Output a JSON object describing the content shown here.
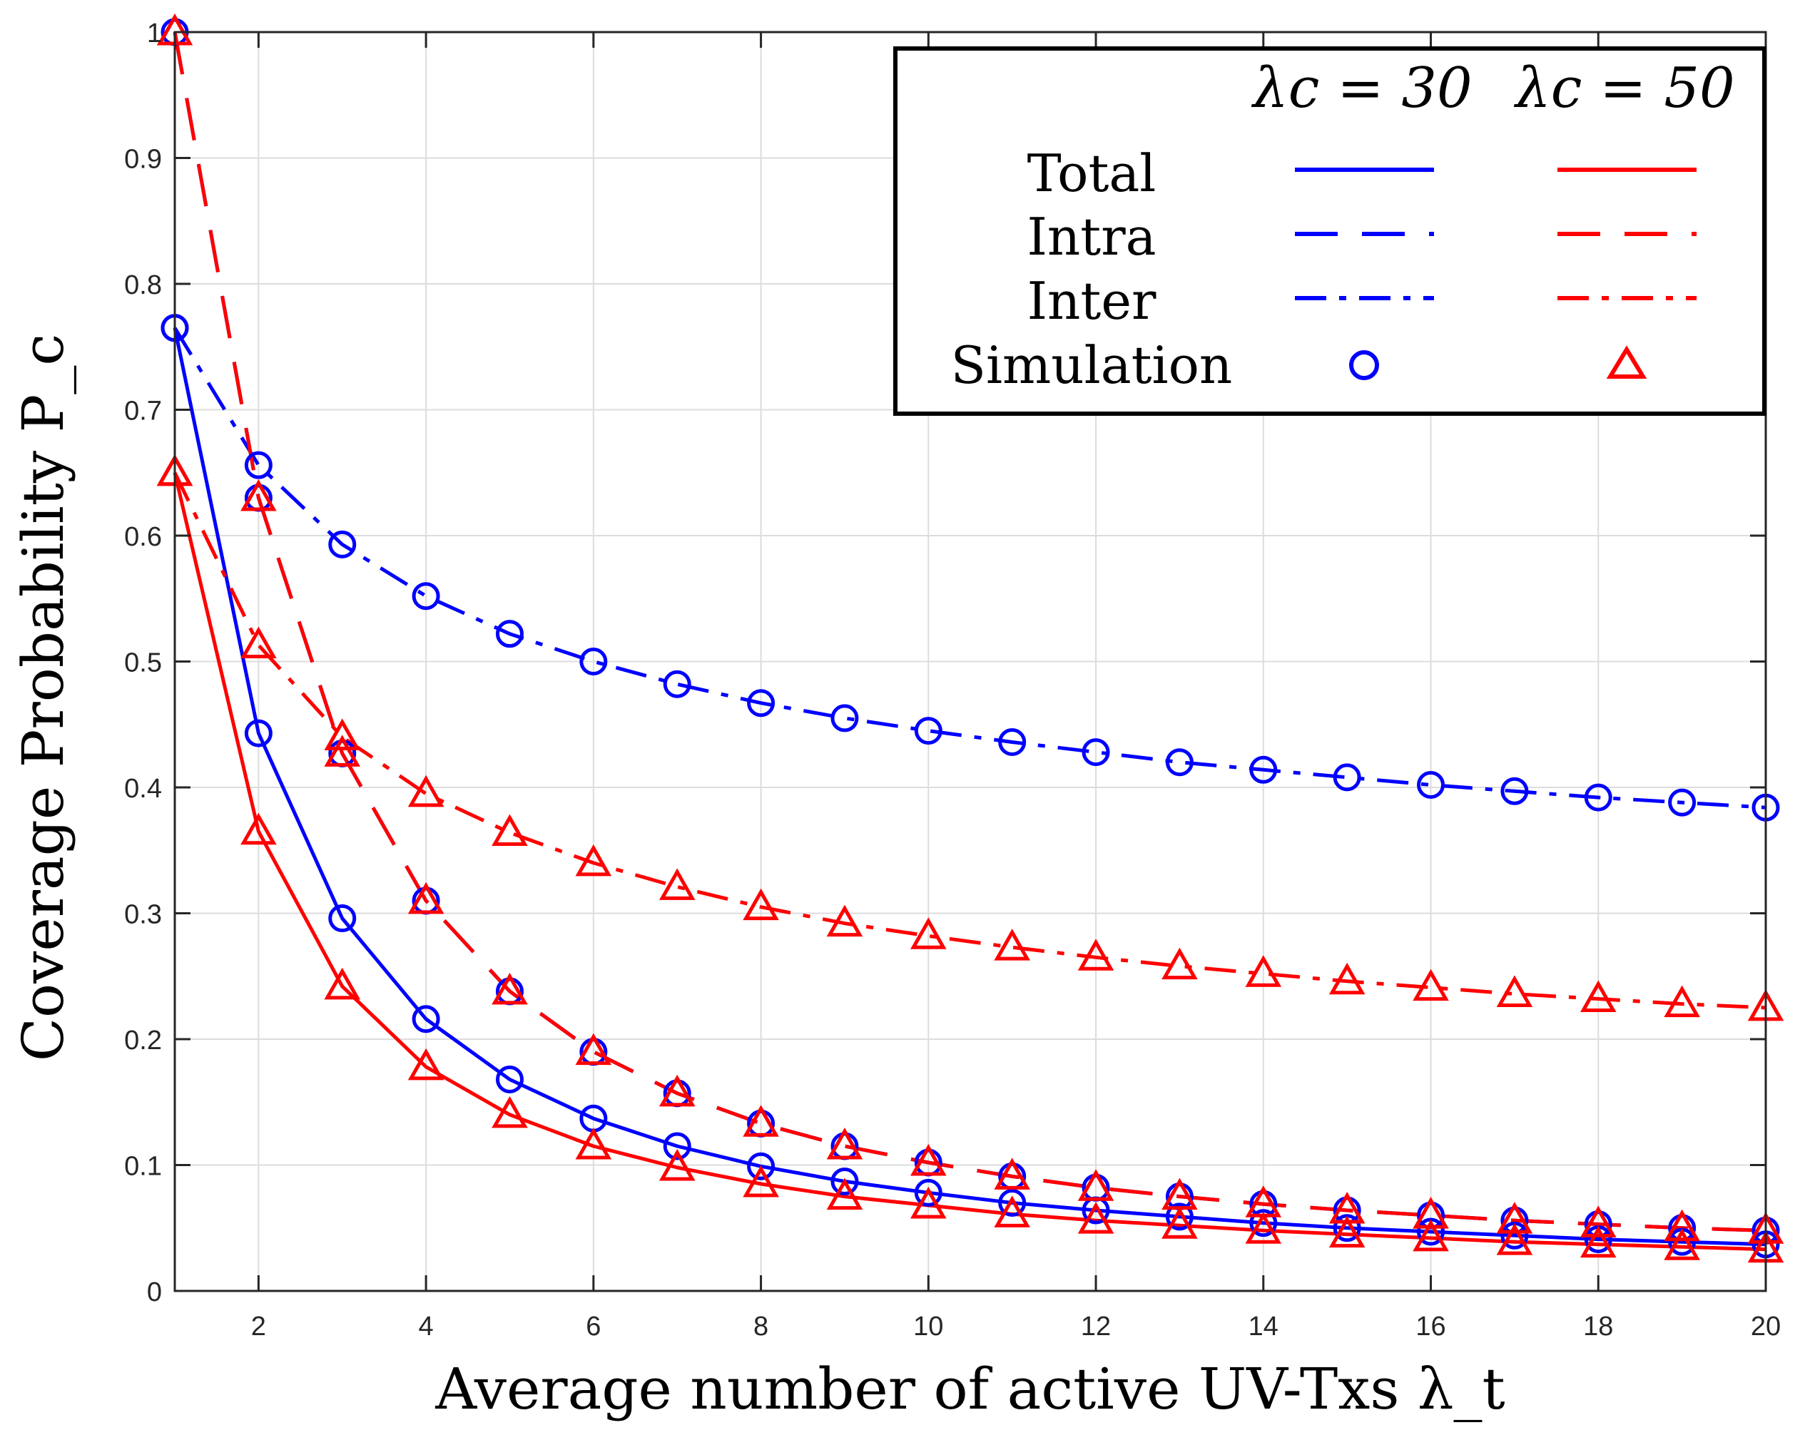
{
  "chart_data": {
    "type": "line",
    "title": "",
    "xlabel": "Average number of active UV-Txs λ_t",
    "ylabel": "Coverage Probability P_c",
    "xlim": [
      1,
      20
    ],
    "ylim": [
      0,
      1
    ],
    "grid": true,
    "x_ticks": [
      2,
      4,
      6,
      8,
      10,
      12,
      14,
      16,
      18,
      20
    ],
    "y_ticks": [
      0,
      0.1,
      0.2,
      0.3,
      0.4,
      0.5,
      0.6,
      0.7,
      0.8,
      0.9,
      1
    ],
    "x_tick_labels": [
      "2",
      "4",
      "6",
      "8",
      "10",
      "12",
      "14",
      "16",
      "18",
      "20"
    ],
    "y_tick_labels": [
      "0",
      "0.1",
      "0.2",
      "0.3",
      "0.4",
      "0.5",
      "0.6",
      "0.7",
      "0.8",
      "0.9",
      "1"
    ],
    "legend": {
      "placement": "top-right",
      "headers": [
        "λc = 30",
        "λc = 50"
      ],
      "rows": [
        "Total",
        "Intra",
        "Inter",
        "Simulation"
      ]
    },
    "x": [
      1,
      2,
      3,
      4,
      5,
      6,
      7,
      8,
      9,
      10,
      11,
      12,
      13,
      14,
      15,
      16,
      17,
      18,
      19,
      20
    ],
    "series": [
      {
        "name": "Total λc=30",
        "color": "#0000ff",
        "style": "solid",
        "values": [
          0.765,
          0.443,
          0.296,
          0.216,
          0.168,
          0.137,
          0.115,
          0.099,
          0.087,
          0.078,
          0.07,
          0.064,
          0.059,
          0.054,
          0.05,
          0.047,
          0.044,
          0.041,
          0.039,
          0.037
        ]
      },
      {
        "name": "Intra λc=30",
        "color": "#0000ff",
        "style": "dash",
        "values": [
          1.0,
          0.63,
          0.427,
          0.31,
          0.238,
          0.19,
          0.157,
          0.133,
          0.115,
          0.102,
          0.091,
          0.082,
          0.075,
          0.069,
          0.064,
          0.06,
          0.056,
          0.053,
          0.05,
          0.048
        ]
      },
      {
        "name": "Inter λc=30",
        "color": "#0000ff",
        "style": "dashdot",
        "values": [
          0.765,
          0.656,
          0.593,
          0.552,
          0.522,
          0.5,
          0.482,
          0.467,
          0.455,
          0.445,
          0.436,
          0.428,
          0.42,
          0.414,
          0.408,
          0.402,
          0.397,
          0.392,
          0.388,
          0.384
        ]
      },
      {
        "name": "Total λc=50",
        "color": "#ff0000",
        "style": "solid",
        "values": [
          0.65,
          0.365,
          0.242,
          0.178,
          0.14,
          0.115,
          0.098,
          0.085,
          0.075,
          0.068,
          0.061,
          0.056,
          0.052,
          0.048,
          0.045,
          0.042,
          0.039,
          0.037,
          0.035,
          0.033
        ]
      },
      {
        "name": "Intra λc=50",
        "color": "#ff0000",
        "style": "dash",
        "values": [
          1.0,
          0.63,
          0.427,
          0.31,
          0.238,
          0.19,
          0.157,
          0.133,
          0.115,
          0.102,
          0.091,
          0.082,
          0.075,
          0.069,
          0.064,
          0.06,
          0.056,
          0.053,
          0.05,
          0.048
        ]
      },
      {
        "name": "Inter λc=50",
        "color": "#ff0000",
        "style": "dashdot",
        "values": [
          0.65,
          0.513,
          0.44,
          0.395,
          0.364,
          0.34,
          0.321,
          0.305,
          0.292,
          0.282,
          0.273,
          0.265,
          0.258,
          0.252,
          0.246,
          0.241,
          0.236,
          0.232,
          0.228,
          0.225
        ]
      }
    ],
    "simulation": [
      {
        "name": "Simulation λc=30",
        "color": "#0000ff",
        "marker": "circle"
      },
      {
        "name": "Simulation λc=50",
        "color": "#ff0000",
        "marker": "triangle"
      }
    ]
  }
}
